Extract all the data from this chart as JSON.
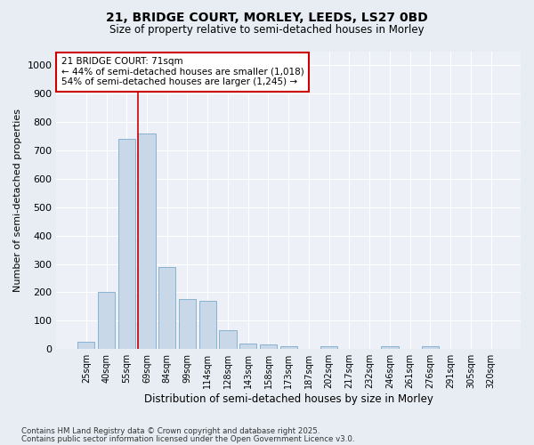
{
  "title_line1": "21, BRIDGE COURT, MORLEY, LEEDS, LS27 0BD",
  "title_line2": "Size of property relative to semi-detached houses in Morley",
  "xlabel": "Distribution of semi-detached houses by size in Morley",
  "ylabel": "Number of semi-detached properties",
  "categories": [
    "25sqm",
    "40sqm",
    "55sqm",
    "69sqm",
    "84sqm",
    "99sqm",
    "114sqm",
    "128sqm",
    "143sqm",
    "158sqm",
    "173sqm",
    "187sqm",
    "202sqm",
    "217sqm",
    "232sqm",
    "246sqm",
    "261sqm",
    "276sqm",
    "291sqm",
    "305sqm",
    "320sqm"
  ],
  "values": [
    25,
    200,
    740,
    760,
    290,
    175,
    170,
    65,
    20,
    15,
    10,
    0,
    10,
    0,
    0,
    10,
    0,
    10,
    0,
    0,
    0
  ],
  "bar_color": "#c8d8e8",
  "bar_edge_color": "#7aaaca",
  "vline_x_index": 2.57,
  "vline_color": "#cc0000",
  "annotation_text": "21 BRIDGE COURT: 71sqm\n← 44% of semi-detached houses are smaller (1,018)\n54% of semi-detached houses are larger (1,245) →",
  "annotation_box_color": "#ffffff",
  "annotation_box_edge": "#cc0000",
  "ylim": [
    0,
    1050
  ],
  "yticks": [
    0,
    100,
    200,
    300,
    400,
    500,
    600,
    700,
    800,
    900,
    1000
  ],
  "footer_line1": "Contains HM Land Registry data © Crown copyright and database right 2025.",
  "footer_line2": "Contains public sector information licensed under the Open Government Licence v3.0.",
  "bg_color": "#e8edf3",
  "plot_bg_color": "#edf1f7"
}
